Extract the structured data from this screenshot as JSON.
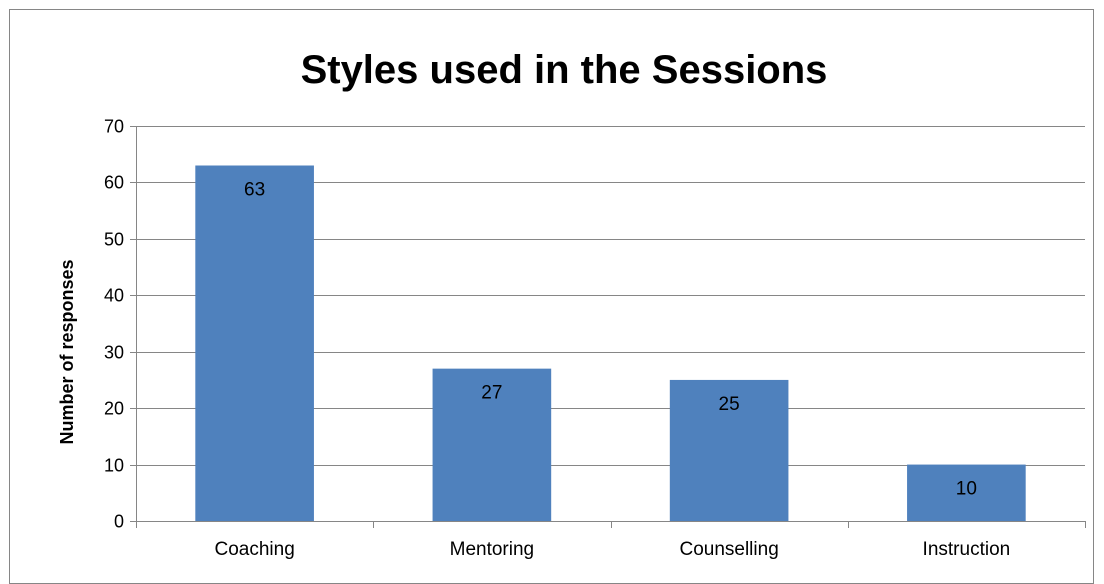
{
  "chart_data": {
    "type": "bar",
    "title": "Styles used in the Sessions",
    "xlabel": "",
    "ylabel": "Number of responses",
    "categories": [
      "Coaching",
      "Mentoring",
      "Counselling",
      "Instruction"
    ],
    "values": [
      63,
      27,
      25,
      10
    ],
    "data_labels": [
      "63",
      "27",
      "25",
      "10"
    ],
    "ylim": [
      0,
      70
    ],
    "yticks": [
      0,
      10,
      20,
      30,
      40,
      50,
      60,
      70
    ],
    "grid": true,
    "legend": "none",
    "bar_color": "#4F81BD",
    "grid_color": "#868686"
  }
}
